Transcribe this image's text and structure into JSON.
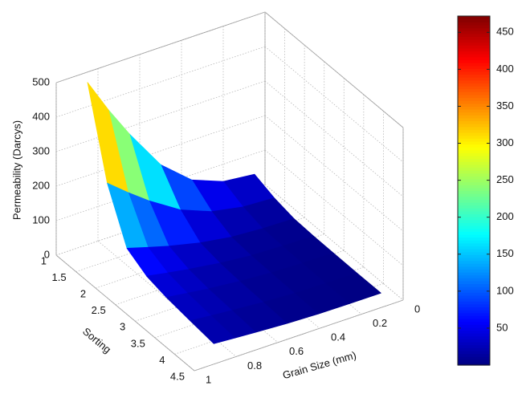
{
  "chart_data": {
    "type": "surface",
    "xlabel": "Grain Size (mm)",
    "ylabel": "Sorting",
    "zlabel": "Permeability (Darcys)",
    "x": [
      0.05,
      0.2,
      0.35,
      0.5,
      0.65,
      0.75,
      0.85
    ],
    "y": [
      1,
      1.5,
      2,
      2.5,
      3,
      3.6,
      4.2
    ],
    "z": [
      [
        40,
        50,
        85,
        160,
        280,
        370,
        470
      ],
      [
        19,
        24,
        41,
        77,
        134,
        178,
        226
      ],
      [
        7,
        9,
        15,
        29,
        50,
        67,
        85
      ],
      [
        4,
        6,
        9,
        18,
        31,
        41,
        52
      ],
      [
        3,
        4,
        7,
        13,
        22,
        30,
        38
      ],
      [
        2,
        3,
        5,
        10,
        17,
        22,
        28
      ],
      [
        2,
        2,
        3,
        6,
        11,
        15,
        19
      ]
    ],
    "xlim": [
      0,
      1
    ],
    "xticks": [
      0,
      0.2,
      0.4,
      0.6,
      0.8,
      1
    ],
    "ylim": [
      1,
      4.5
    ],
    "yticks": [
      1,
      1.5,
      2,
      2.5,
      3,
      3.5,
      4,
      4.5
    ],
    "zlim": [
      0,
      500
    ],
    "zticks": [
      0,
      100,
      200,
      300,
      400,
      500
    ],
    "colormap": "jet",
    "clim": [
      0,
      472
    ],
    "cticks": [
      50,
      100,
      150,
      200,
      250,
      300,
      350,
      400,
      450
    ],
    "grid": true,
    "colorbar": true
  }
}
